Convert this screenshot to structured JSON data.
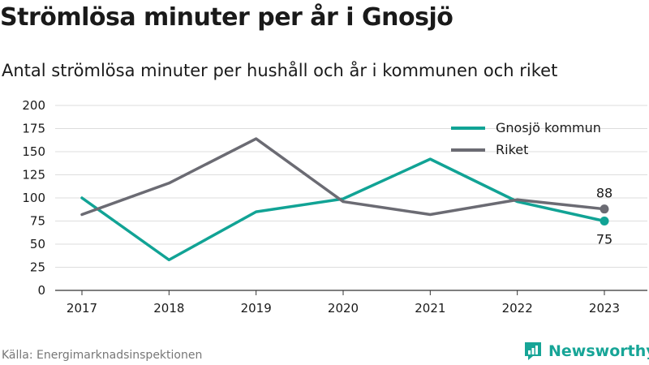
{
  "title": "Strömlösa minuter per år i Gnosjö",
  "subtitle": "Antal strömlösa minuter per hushåll och år i kommunen och riket",
  "source": "Källa: Energimarknadsinspektionen",
  "brand": {
    "name": "Newsworthy",
    "icon": "newsworthy-logo-icon",
    "color": "#17a597"
  },
  "chart_data": {
    "type": "line",
    "categories": [
      "2017",
      "2018",
      "2019",
      "2020",
      "2021",
      "2022",
      "2023"
    ],
    "ylim": [
      0,
      200
    ],
    "yticks": [
      "0",
      "25",
      "50",
      "75",
      "100",
      "125",
      "150",
      "175",
      "200"
    ],
    "grid": true,
    "legend_position": "top-right",
    "series": [
      {
        "name": "Gnosjö kommun",
        "color": "#11a395",
        "values": [
          100,
          33,
          85,
          99,
          142,
          96,
          75
        ],
        "end_label": "75"
      },
      {
        "name": "Riket",
        "color": "#6b6b73",
        "values": [
          82,
          116,
          164,
          96,
          82,
          98,
          88
        ],
        "end_label": "88"
      }
    ]
  }
}
